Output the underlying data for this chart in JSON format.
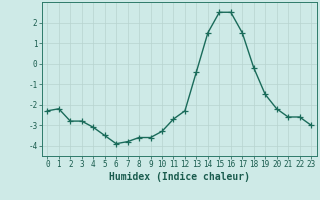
{
  "x": [
    0,
    1,
    2,
    3,
    4,
    5,
    6,
    7,
    8,
    9,
    10,
    11,
    12,
    13,
    14,
    15,
    16,
    17,
    18,
    19,
    20,
    21,
    22,
    23
  ],
  "y": [
    -2.3,
    -2.2,
    -2.8,
    -2.8,
    -3.1,
    -3.5,
    -3.9,
    -3.8,
    -3.6,
    -3.6,
    -3.3,
    -2.7,
    -2.3,
    -0.4,
    1.5,
    2.5,
    2.5,
    1.5,
    -0.2,
    -1.5,
    -2.2,
    -2.6,
    -2.6,
    -3.0
  ],
  "line_color": "#1a6b5a",
  "marker": "+",
  "markersize": 4,
  "markeredgewidth": 0.9,
  "linewidth": 1.0,
  "xlabel": "Humidex (Indice chaleur)",
  "xlim": [
    -0.5,
    23.5
  ],
  "ylim": [
    -4.5,
    3.0
  ],
  "yticks": [
    -4,
    -3,
    -2,
    -1,
    0,
    1,
    2
  ],
  "xticks": [
    0,
    1,
    2,
    3,
    4,
    5,
    6,
    7,
    8,
    9,
    10,
    11,
    12,
    13,
    14,
    15,
    16,
    17,
    18,
    19,
    20,
    21,
    22,
    23
  ],
  "bg_color": "#ceeae7",
  "grid_color": "#b8d4d0",
  "axes_color": "#2d7a6a",
  "tick_color": "#1a5c4e",
  "tick_fontsize": 5.5,
  "xlabel_fontsize": 7.0
}
